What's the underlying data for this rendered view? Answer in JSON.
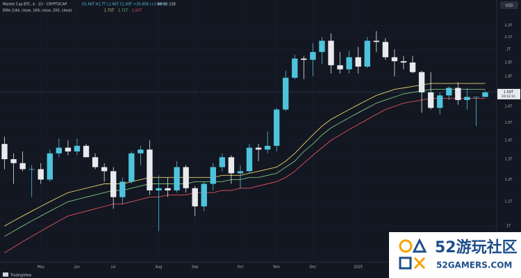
{
  "chart_data": {
    "type": "candlestick",
    "header": {
      "symbol": "Market Cap BTC, $ · 1D · CRYPTOCAP",
      "ohlc": "O1.66T H1.7T L1.66T C1.69T +26.85B (+1.60%)",
      "volume": "Vol 93.32B"
    },
    "currency": "USD",
    "log_scale": true,
    "grid": true,
    "up_color": "#4fc3dc",
    "down_color": "#e8eaed",
    "categories": [
      null,
      null,
      null,
      null,
      "May",
      null,
      null,
      null,
      "Jun",
      null,
      null,
      null,
      "Jul",
      null,
      null,
      null,
      null,
      "Aug",
      null,
      null,
      null,
      "Sep",
      null,
      null,
      null,
      null,
      "Oct",
      null,
      null,
      null,
      "Nov",
      null,
      null,
      null,
      "Dec",
      null,
      null,
      null,
      null,
      "2025",
      null,
      null,
      null,
      null,
      null,
      null,
      null,
      null,
      null,
      null,
      null,
      null,
      null,
      null
    ],
    "open": [
      1.38,
      1.3,
      1.28,
      1.25,
      1.25,
      1.2,
      1.33,
      1.36,
      1.34,
      1.37,
      1.31,
      1.26,
      1.24,
      1.12,
      1.19,
      1.33,
      1.35,
      1.15,
      1.16,
      1.15,
      1.26,
      1.16,
      1.08,
      1.18,
      1.26,
      1.31,
      1.23,
      1.24,
      1.36,
      1.35,
      1.37,
      1.58,
      1.79,
      1.93,
      1.92,
      1.98,
      2.07,
      1.88,
      1.85,
      1.94,
      1.87,
      2.07,
      2.06,
      1.94,
      1.91,
      1.9,
      1.83,
      1.69,
      1.59,
      1.67,
      1.72,
      1.64,
      1.66,
      1.66
    ],
    "high": [
      1.42,
      1.33,
      1.34,
      1.27,
      1.28,
      1.35,
      1.41,
      1.4,
      1.41,
      1.38,
      1.33,
      1.28,
      1.26,
      1.21,
      1.34,
      1.37,
      1.4,
      1.22,
      1.21,
      1.29,
      1.27,
      1.17,
      1.19,
      1.28,
      1.33,
      1.32,
      1.27,
      1.38,
      1.38,
      1.45,
      1.59,
      1.84,
      1.96,
      1.95,
      2.05,
      2.1,
      2.13,
      1.98,
      1.99,
      2.02,
      2.1,
      2.15,
      2.09,
      2.0,
      1.95,
      1.95,
      1.84,
      1.83,
      1.69,
      1.73,
      1.76,
      1.72,
      1.66,
      1.7
    ],
    "low": [
      1.25,
      1.18,
      1.24,
      1.12,
      1.18,
      1.19,
      1.31,
      1.32,
      1.32,
      1.31,
      1.25,
      1.19,
      1.07,
      1.09,
      1.18,
      1.27,
      1.13,
      0.98,
      1.12,
      1.14,
      1.14,
      1.04,
      1.06,
      1.15,
      1.24,
      1.18,
      1.16,
      1.23,
      1.29,
      1.33,
      1.34,
      1.57,
      1.78,
      1.78,
      1.8,
      1.89,
      1.82,
      1.82,
      1.82,
      1.82,
      1.86,
      1.98,
      1.92,
      1.8,
      1.85,
      1.82,
      1.56,
      1.58,
      1.55,
      1.64,
      1.61,
      1.58,
      1.48,
      1.66
    ],
    "close": [
      1.3,
      1.28,
      1.25,
      1.25,
      1.2,
      1.33,
      1.36,
      1.34,
      1.37,
      1.31,
      1.26,
      1.24,
      1.12,
      1.19,
      1.33,
      1.35,
      1.15,
      1.16,
      1.15,
      1.26,
      1.16,
      1.08,
      1.18,
      1.26,
      1.31,
      1.23,
      1.24,
      1.36,
      1.35,
      1.37,
      1.58,
      1.79,
      1.93,
      1.92,
      1.98,
      2.07,
      1.88,
      1.85,
      1.94,
      1.87,
      2.07,
      2.06,
      1.94,
      1.91,
      1.9,
      1.83,
      1.69,
      1.59,
      1.67,
      1.72,
      1.64,
      1.66,
      1.66,
      1.69
    ],
    "ema": {
      "label": "EMA (144, close, 169, close, 200, close)",
      "lines": [
        {
          "color": "#e6d36a",
          "value_label": "1.75T",
          "values": [
            1.0,
            1.02,
            1.04,
            1.06,
            1.08,
            1.1,
            1.12,
            1.14,
            1.15,
            1.16,
            1.17,
            1.18,
            1.18,
            1.18,
            1.19,
            1.2,
            1.21,
            1.21,
            1.21,
            1.21,
            1.21,
            1.21,
            1.21,
            1.21,
            1.22,
            1.22,
            1.22,
            1.23,
            1.24,
            1.25,
            1.26,
            1.29,
            1.33,
            1.38,
            1.43,
            1.48,
            1.52,
            1.55,
            1.58,
            1.61,
            1.64,
            1.67,
            1.69,
            1.71,
            1.72,
            1.73,
            1.74,
            1.75,
            1.75,
            1.75,
            1.75,
            1.75,
            1.75,
            1.75
          ]
        },
        {
          "color": "#7cc47a",
          "value_label": "1.71T",
          "values": [
            0.96,
            0.98,
            1.0,
            1.02,
            1.04,
            1.06,
            1.08,
            1.1,
            1.11,
            1.12,
            1.13,
            1.14,
            1.15,
            1.15,
            1.16,
            1.17,
            1.18,
            1.18,
            1.18,
            1.18,
            1.18,
            1.19,
            1.19,
            1.19,
            1.19,
            1.2,
            1.2,
            1.21,
            1.21,
            1.22,
            1.23,
            1.26,
            1.29,
            1.34,
            1.38,
            1.43,
            1.47,
            1.5,
            1.53,
            1.56,
            1.59,
            1.62,
            1.64,
            1.66,
            1.68,
            1.69,
            1.7,
            1.71,
            1.71,
            1.71,
            1.71,
            1.71,
            1.71,
            1.71
          ]
        },
        {
          "color": "#e0525a",
          "value_label": "1.65T",
          "values": [
            0.9,
            0.92,
            0.94,
            0.96,
            0.98,
            1.0,
            1.02,
            1.04,
            1.05,
            1.06,
            1.07,
            1.08,
            1.09,
            1.09,
            1.1,
            1.11,
            1.12,
            1.12,
            1.13,
            1.13,
            1.13,
            1.14,
            1.14,
            1.14,
            1.15,
            1.15,
            1.16,
            1.16,
            1.17,
            1.18,
            1.19,
            1.21,
            1.24,
            1.28,
            1.32,
            1.36,
            1.4,
            1.43,
            1.46,
            1.49,
            1.52,
            1.55,
            1.58,
            1.6,
            1.62,
            1.63,
            1.64,
            1.65,
            1.65,
            1.65,
            1.65,
            1.65,
            1.65,
            1.65
          ]
        }
      ]
    },
    "price_label": {
      "value": 1.69,
      "label": "1.69T"
    },
    "countdown": "10:12:11",
    "ylim": [
      0.88,
      2.3
    ],
    "yticks": [
      {
        "value": 2.2,
        "label": "2.2T"
      },
      {
        "value": 2.1,
        "label": "2.1T"
      },
      {
        "value": 2.0,
        "label": "2T"
      },
      {
        "value": 1.9,
        "label": "1.9T"
      },
      {
        "value": 1.8,
        "label": "1.8T"
      },
      {
        "value": 1.7,
        "label": "1.7T"
      },
      {
        "value": 1.6,
        "label": "1.6T"
      },
      {
        "value": 1.5,
        "label": "1.5T"
      },
      {
        "value": 1.4,
        "label": "1.4T"
      },
      {
        "value": 1.3,
        "label": "1.3T"
      },
      {
        "value": 1.2,
        "label": "1.2T"
      },
      {
        "value": 1.1,
        "label": "1.1T"
      },
      {
        "value": 1.0,
        "label": "1T"
      },
      {
        "value": 0.9,
        "label": "900B"
      }
    ],
    "brand": "TradingView",
    "watermark": {
      "title": "52游玩社区",
      "site": "52GAMERS.COM"
    }
  }
}
